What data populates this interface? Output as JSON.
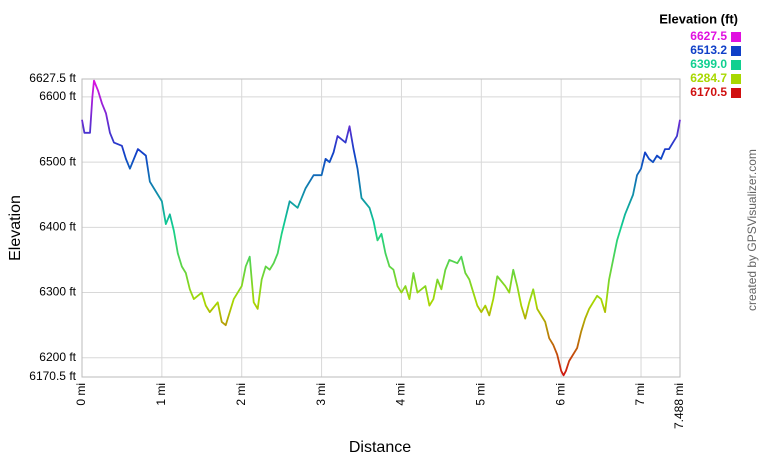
{
  "chart_data": {
    "type": "line",
    "y_label": "Elevation",
    "x_label": "Distance",
    "credit": "created by GPSVisualizer.com",
    "legend_title": "Elevation (ft)",
    "color_scale": [
      {
        "value": 6627.5,
        "label": "6627.5",
        "color": "#e010e0"
      },
      {
        "value": 6513.2,
        "label": "6513.2",
        "color": "#1040c8"
      },
      {
        "value": 6399.0,
        "label": "6399.0",
        "color": "#10d090"
      },
      {
        "value": 6284.7,
        "label": "6284.7",
        "color": "#a8d800"
      },
      {
        "value": 6170.5,
        "label": "6170.5",
        "color": "#d01010"
      }
    ],
    "ylim": [
      6170.5,
      6627.5
    ],
    "yticks": [
      {
        "value": 6170.5,
        "label": "6170.5 ft"
      },
      {
        "value": 6200,
        "label": "6200 ft"
      },
      {
        "value": 6300,
        "label": "6300 ft"
      },
      {
        "value": 6400,
        "label": "6400 ft"
      },
      {
        "value": 6500,
        "label": "6500 ft"
      },
      {
        "value": 6600,
        "label": "6600 ft"
      },
      {
        "value": 6627.5,
        "label": "6627.5 ft"
      }
    ],
    "xlim": [
      0,
      7.488
    ],
    "xticks": [
      {
        "value": 0,
        "label": "0 mi"
      },
      {
        "value": 1,
        "label": "1 mi"
      },
      {
        "value": 2,
        "label": "2 mi"
      },
      {
        "value": 3,
        "label": "3 mi"
      },
      {
        "value": 4,
        "label": "4 mi"
      },
      {
        "value": 5,
        "label": "5 mi"
      },
      {
        "value": 6,
        "label": "6 mi"
      },
      {
        "value": 7,
        "label": "7 mi"
      },
      {
        "value": 7.488,
        "label": "7.488 mi"
      }
    ],
    "grid": true,
    "series": [
      {
        "x": [
          0,
          0.03,
          0.1,
          0.13,
          0.15,
          0.2,
          0.25,
          0.3,
          0.35,
          0.4,
          0.5,
          0.55,
          0.6,
          0.65,
          0.7,
          0.8,
          0.85,
          0.9,
          0.95,
          1.0,
          1.05,
          1.1,
          1.15,
          1.2,
          1.25,
          1.3,
          1.35,
          1.4,
          1.5,
          1.55,
          1.6,
          1.7,
          1.75,
          1.8,
          1.9,
          2.0,
          2.05,
          2.1,
          2.15,
          2.2,
          2.25,
          2.3,
          2.35,
          2.4,
          2.45,
          2.5,
          2.55,
          2.6,
          2.7,
          2.8,
          2.9,
          3.0,
          3.05,
          3.1,
          3.15,
          3.2,
          3.3,
          3.35,
          3.4,
          3.45,
          3.5,
          3.6,
          3.65,
          3.7,
          3.75,
          3.8,
          3.85,
          3.9,
          3.95,
          4.0,
          4.05,
          4.1,
          4.15,
          4.2,
          4.3,
          4.35,
          4.4,
          4.45,
          4.5,
          4.55,
          4.6,
          4.7,
          4.75,
          4.8,
          4.85,
          4.9,
          4.95,
          5.0,
          5.05,
          5.1,
          5.15,
          5.2,
          5.3,
          5.35,
          5.4,
          5.45,
          5.5,
          5.55,
          5.6,
          5.65,
          5.7,
          5.75,
          5.8,
          5.85,
          5.9,
          5.95,
          6.0,
          6.03,
          6.06,
          6.1,
          6.2,
          6.25,
          6.3,
          6.35,
          6.45,
          6.5,
          6.55,
          6.6,
          6.65,
          6.7,
          6.8,
          6.9,
          6.95,
          7.0,
          7.05,
          7.1,
          7.15,
          7.2,
          7.25,
          7.3,
          7.35,
          7.4,
          7.45,
          7.488
        ],
        "values": [
          6565,
          6545,
          6545,
          6600,
          6625,
          6610,
          6590,
          6575,
          6545,
          6530,
          6525,
          6505,
          6490,
          6505,
          6520,
          6510,
          6470,
          6460,
          6450,
          6440,
          6405,
          6420,
          6395,
          6360,
          6340,
          6330,
          6305,
          6290,
          6300,
          6280,
          6270,
          6285,
          6255,
          6250,
          6290,
          6310,
          6340,
          6355,
          6285,
          6275,
          6320,
          6340,
          6335,
          6345,
          6360,
          6390,
          6415,
          6440,
          6430,
          6460,
          6480,
          6480,
          6505,
          6500,
          6515,
          6540,
          6530,
          6555,
          6520,
          6490,
          6445,
          6430,
          6410,
          6380,
          6390,
          6360,
          6340,
          6335,
          6310,
          6300,
          6310,
          6290,
          6330,
          6300,
          6310,
          6280,
          6290,
          6320,
          6305,
          6335,
          6350,
          6345,
          6355,
          6330,
          6320,
          6300,
          6280,
          6270,
          6280,
          6265,
          6290,
          6325,
          6310,
          6300,
          6335,
          6310,
          6280,
          6260,
          6285,
          6305,
          6275,
          6265,
          6255,
          6230,
          6220,
          6205,
          6180,
          6173,
          6180,
          6195,
          6215,
          6240,
          6260,
          6275,
          6295,
          6290,
          6270,
          6320,
          6350,
          6380,
          6420,
          6450,
          6480,
          6490,
          6515,
          6505,
          6500,
          6510,
          6505,
          6520,
          6520,
          6530,
          6540,
          6565
        ]
      }
    ]
  }
}
